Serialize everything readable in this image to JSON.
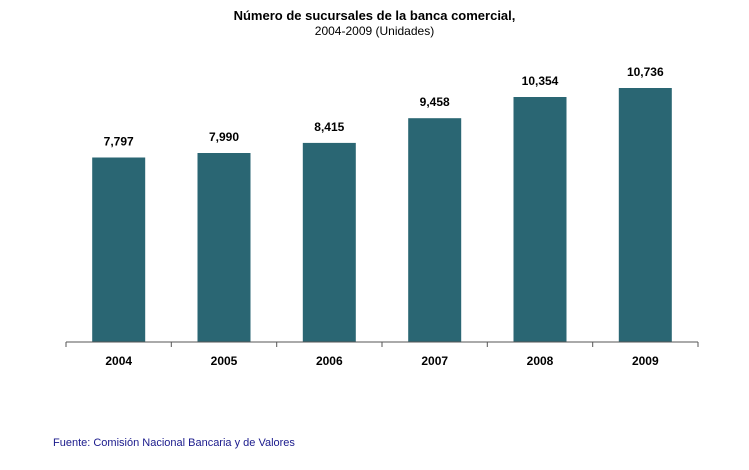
{
  "chart_data": {
    "type": "bar",
    "title": "Número de sucursales de la banca comercial,",
    "subtitle": "2004-2009 (Unidades)",
    "categories": [
      "2004",
      "2005",
      "2006",
      "2007",
      "2008",
      "2009"
    ],
    "values": [
      7797,
      7990,
      8415,
      9458,
      10354,
      10736
    ],
    "value_labels": [
      "7,797",
      "7,990",
      "8,415",
      "9,458",
      "10,354",
      "10,736"
    ],
    "xlabel": "",
    "ylabel": "",
    "ylim": [
      0,
      12000
    ],
    "grid": false,
    "bar_color": "#2a6673"
  },
  "source": "Fuente: Comisión Nacional Bancaria y de Valores"
}
